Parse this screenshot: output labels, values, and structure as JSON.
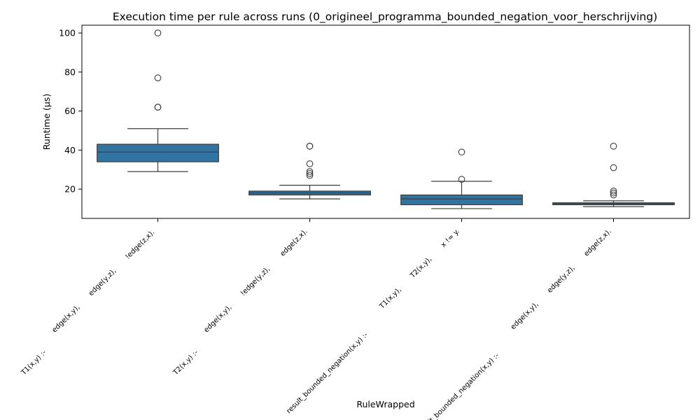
{
  "chart_data": {
    "type": "box",
    "title": "Execution time per rule across runs (0_origineel_programma_bounded_negation_voor_herschrijving)",
    "xlabel": "RuleWrapped",
    "ylabel": "Runtime (µs)",
    "ylim": [
      5,
      104
    ],
    "yticks": [
      20,
      40,
      60,
      80,
      100
    ],
    "grid": false,
    "box_color": "#3274a1",
    "categories": [
      [
        "T1(x,y) :-",
        "edge(x,y),",
        "edge(y,z),",
        "!edge(z,x)."
      ],
      [
        "T2(x,y) :-",
        "edge(x,y),",
        "!edge(y,z),",
        "edge(z,x)."
      ],
      [
        "result_bounded_negation(x,y) :-",
        "T1(x,y),",
        "T2(x,y),",
        "x != y."
      ],
      [
        "result_bounded_negation(x,y) :-",
        "edge(x,y),",
        "edge(y,z),",
        "edge(z,x)."
      ]
    ],
    "boxes": [
      {
        "whisker_low": 29,
        "q1": 34,
        "median": 39,
        "q3": 43,
        "whisker_high": 51,
        "outliers": [
          62,
          62,
          77,
          100
        ]
      },
      {
        "whisker_low": 15,
        "q1": 17,
        "median": 18,
        "q3": 19,
        "whisker_high": 22,
        "outliers": [
          27,
          28,
          29,
          33,
          42,
          42
        ]
      },
      {
        "whisker_low": 10,
        "q1": 12,
        "median": 15,
        "q3": 17,
        "whisker_high": 24,
        "outliers": [
          25,
          39
        ]
      },
      {
        "whisker_low": 11,
        "q1": 12,
        "median": 12.5,
        "q3": 13,
        "whisker_high": 14,
        "outliers": [
          17,
          18,
          19,
          31,
          42
        ]
      }
    ]
  }
}
